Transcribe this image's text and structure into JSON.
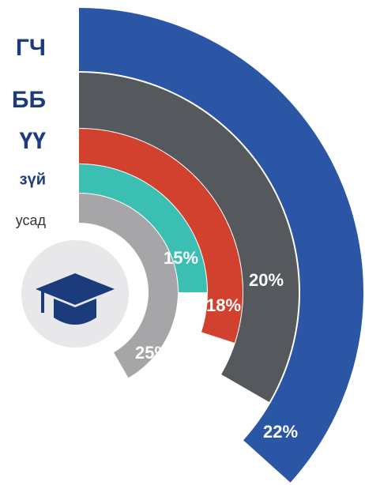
{
  "chart_data": {
    "type": "radial_bar",
    "categories": [
      "ГЧ",
      "ББ",
      "ҮҮ",
      "зүй",
      "усад"
    ],
    "values": [
      22,
      20,
      18,
      15,
      25
    ],
    "value_labels": [
      "22%",
      "20%",
      "18%",
      "15%",
      "25%"
    ],
    "colors": [
      "#2a56a5",
      "#55585c",
      "#d2402e",
      "#3bbfb3",
      "#a6a6a8"
    ]
  }
}
